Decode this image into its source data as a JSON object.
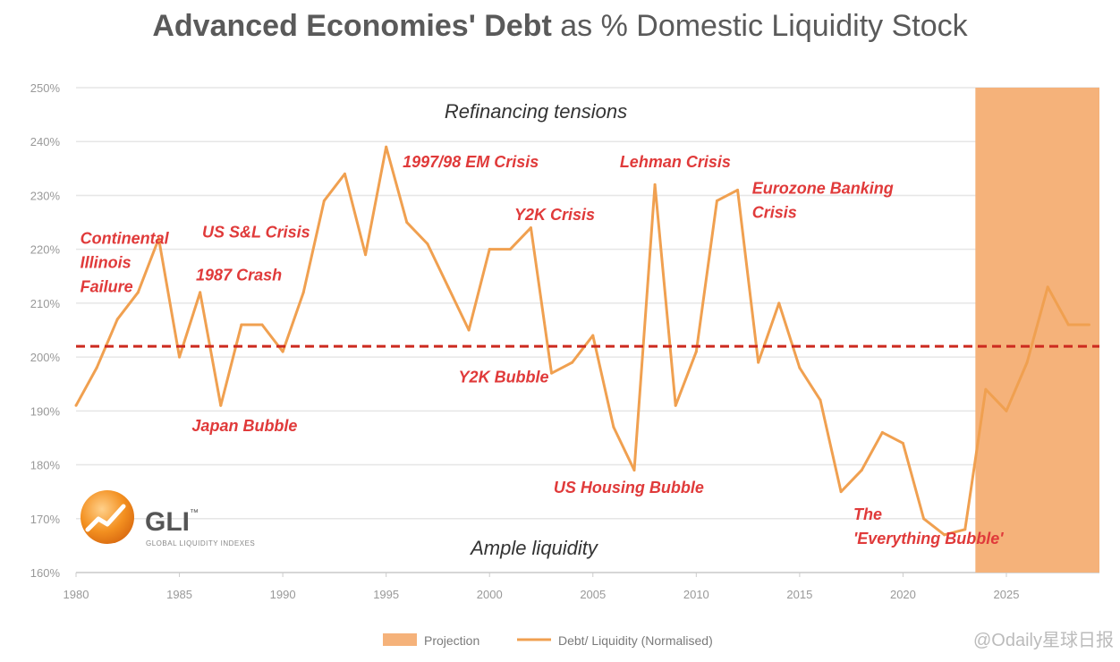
{
  "title": {
    "bold": "Advanced Economies' Debt",
    "rest": " as % Domestic Liquidity Stock"
  },
  "logo": {
    "name": "GLI",
    "tm": "™",
    "subtitle": "GLOBAL LIQUIDITY INDEXES"
  },
  "watermark": "@Odaily星球日报",
  "legend": {
    "projection": "Projection",
    "series": "Debt/ Liquidity (Normalised)"
  },
  "zones": {
    "top": "Refinancing tensions",
    "bottom": "Ample liquidity"
  },
  "colors": {
    "line": "#f0a050",
    "projection": "#f5b27a",
    "threshold": "#cc2a1f",
    "annotation": "#e03a3a",
    "grid": "#e6e6e6"
  },
  "chart_data": {
    "type": "line",
    "title": "Advanced Economies' Debt as % Domestic Liquidity Stock",
    "xlabel": "",
    "ylabel": "",
    "xlim": [
      1980,
      2029.5
    ],
    "ylim": [
      160,
      250
    ],
    "y_ticks": [
      160,
      170,
      180,
      190,
      200,
      210,
      220,
      230,
      240,
      250
    ],
    "y_tick_labels": [
      "160%",
      "170%",
      "180%",
      "190%",
      "200%",
      "210%",
      "220%",
      "230%",
      "240%",
      "250%"
    ],
    "x_ticks": [
      1980,
      1985,
      1990,
      1995,
      2000,
      2005,
      2010,
      2015,
      2020,
      2025
    ],
    "x_tick_labels": [
      "1980",
      "1985",
      "1990",
      "1995",
      "2000",
      "2005",
      "2010",
      "2015",
      "2020",
      "2025"
    ],
    "grid": true,
    "threshold": 202,
    "projection_range": [
      2023.5,
      2029.5
    ],
    "series": [
      {
        "name": "Debt/ Liquidity (Normalised)",
        "x": [
          1980,
          1981,
          1982,
          1983,
          1984,
          1985,
          1986,
          1987,
          1988,
          1989,
          1990,
          1991,
          1992,
          1993,
          1994,
          1995,
          1996,
          1997,
          1998,
          1999,
          2000,
          2001,
          2002,
          2003,
          2004,
          2005,
          2006,
          2007,
          2008,
          2009,
          2010,
          2011,
          2012,
          2013,
          2014,
          2015,
          2016,
          2017,
          2018,
          2019,
          2020,
          2021,
          2022,
          2023,
          2024,
          2025,
          2026,
          2027,
          2028,
          2029
        ],
        "values": [
          191,
          198,
          207,
          212,
          222,
          200,
          212,
          191,
          206,
          206,
          201,
          212,
          229,
          234,
          219,
          239,
          225,
          221,
          213,
          205,
          220,
          220,
          224,
          197,
          199,
          204,
          187,
          179,
          232,
          191,
          201,
          229,
          231,
          199,
          210,
          198,
          192,
          175,
          179,
          186,
          184,
          170,
          167,
          168,
          194,
          190,
          199,
          213,
          206,
          206
        ]
      }
    ],
    "annotations": [
      {
        "lines": [
          "Continental",
          "Illinois",
          "Failure"
        ],
        "x": 1980.2,
        "y": 221
      },
      {
        "lines": [
          "US S&L Crisis"
        ],
        "x": 1986.1,
        "y": 222.2
      },
      {
        "lines": [
          "1987 Crash"
        ],
        "x": 1985.8,
        "y": 214.2
      },
      {
        "lines": [
          "Japan Bubble"
        ],
        "x": 1985.6,
        "y": 186.2
      },
      {
        "lines": [
          "1997/98 EM Crisis"
        ],
        "x": 1995.8,
        "y": 235.2
      },
      {
        "lines": [
          "Y2K Crisis"
        ],
        "x": 2001.2,
        "y": 225.4
      },
      {
        "lines": [
          "Y2K Bubble"
        ],
        "x": 1998.5,
        "y": 195.3
      },
      {
        "lines": [
          "Lehman Crisis"
        ],
        "x": 2006.3,
        "y": 235.2
      },
      {
        "lines": [
          "Eurozone Banking",
          "Crisis"
        ],
        "x": 2012.7,
        "y": 230.3
      },
      {
        "lines": [
          "US Housing Bubble"
        ],
        "x": 2003.1,
        "y": 174.8
      },
      {
        "lines": [
          "The",
          "'Everything Bubble'"
        ],
        "x": 2017.6,
        "y": 169.8
      }
    ]
  }
}
